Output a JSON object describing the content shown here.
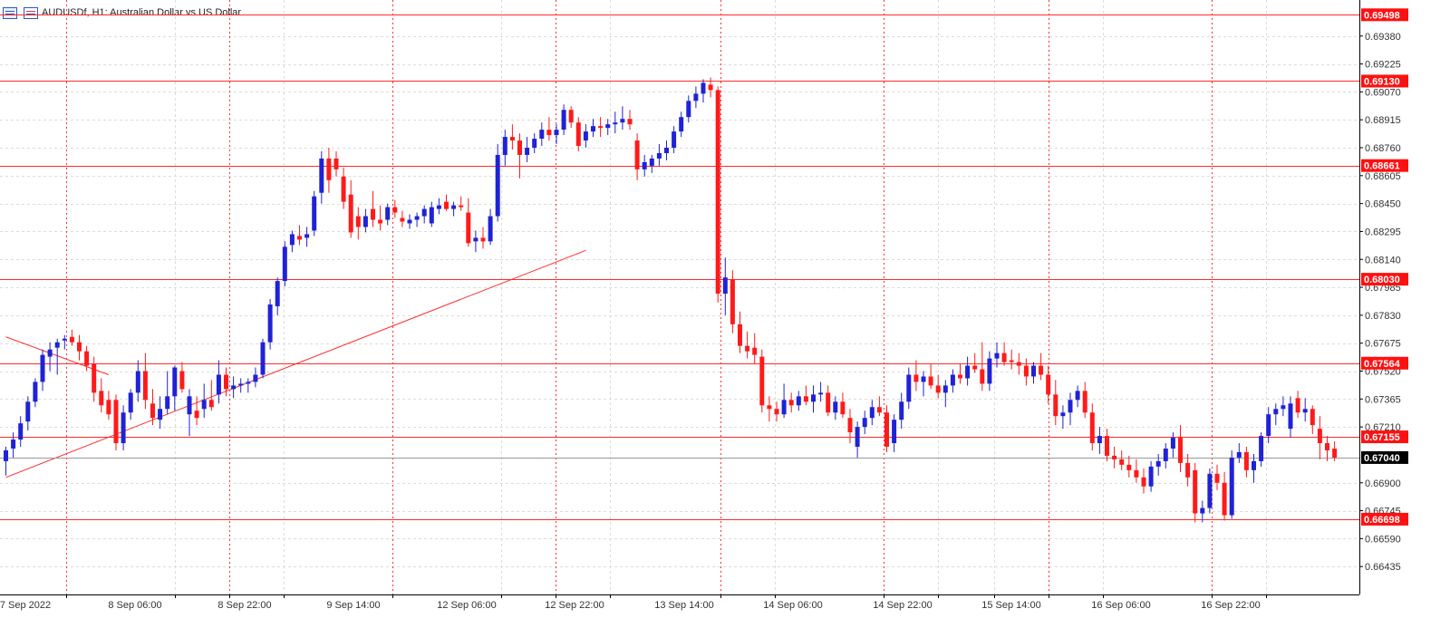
{
  "header": {
    "symbol": "AUDUSDf",
    "timeframe": "H1",
    "description": "Australian Dollar vs US Dollar",
    "title": "AUDUSDf, H1:  Australian Dollar vs US Dollar"
  },
  "colors": {
    "bull": "#1f22d6",
    "bear": "#ff1a1a",
    "level_line": "#ff2b2b",
    "label_bg": "#ff1010",
    "current_line": "#999999",
    "current_label_bg": "#000000",
    "grid": "#dcdcdc",
    "vgrid": "#ff3333",
    "axis_text": "#333333"
  },
  "chart_data": {
    "type": "candlestick",
    "symbol": "AUDUSDf",
    "timeframe": "H1",
    "title": "AUDUSDf, H1:  Australian Dollar vs US Dollar",
    "ylim": [
      0.6628,
      0.6958
    ],
    "y_ticks": [
      "0.69380",
      "0.69225",
      "0.69070",
      "0.68915",
      "0.68760",
      "0.68605",
      "0.68450",
      "0.68295",
      "0.68140",
      "0.67985",
      "0.67830",
      "0.67675",
      "0.67520",
      "0.67365",
      "0.67210",
      "0.66900",
      "0.66745",
      "0.66590",
      "0.66435"
    ],
    "x_tick_labels": [
      "7 Sep 2022",
      "8 Sep 06:00",
      "8 Sep 22:00",
      "9 Sep 14:00",
      "12 Sep 06:00",
      "12 Sep 22:00",
      "13 Sep 14:00",
      "14 Sep 06:00",
      "14 Sep 22:00",
      "15 Sep 14:00",
      "16 Sep 06:00",
      "16 Sep 22:00"
    ],
    "horizontal_levels": [
      {
        "value": 0.69498,
        "label": "0.69498"
      },
      {
        "value": 0.6913,
        "label": "0.69130"
      },
      {
        "value": 0.68661,
        "label": "0.68661"
      },
      {
        "value": 0.6803,
        "label": "0.68030"
      },
      {
        "value": 0.67564,
        "label": "0.67564"
      },
      {
        "value": 0.67155,
        "label": "0.67155"
      },
      {
        "value": 0.66698,
        "label": "0.66698"
      }
    ],
    "current_price": {
      "value": 0.6704,
      "label": "0.67040"
    },
    "trend_lines": [
      {
        "from": {
          "bar": 0,
          "price": 0.6693
        },
        "to": {
          "bar": 79,
          "price": 0.6819
        }
      },
      {
        "from": {
          "bar": 0,
          "price": 0.6771
        },
        "to": {
          "bar": 14,
          "price": 0.675
        }
      }
    ],
    "ohlc": [
      [
        0.6702,
        0.671,
        0.6694,
        0.6708
      ],
      [
        0.6709,
        0.6718,
        0.6704,
        0.6714
      ],
      [
        0.6714,
        0.6727,
        0.671,
        0.6723
      ],
      [
        0.6724,
        0.6738,
        0.6719,
        0.6735
      ],
      [
        0.6735,
        0.6748,
        0.6732,
        0.6746
      ],
      [
        0.6746,
        0.6764,
        0.6741,
        0.6761
      ],
      [
        0.676,
        0.6768,
        0.6752,
        0.6764
      ],
      [
        0.6765,
        0.677,
        0.675,
        0.6768
      ],
      [
        0.6769,
        0.6772,
        0.6764,
        0.677
      ],
      [
        0.6771,
        0.6775,
        0.6766,
        0.6768
      ],
      [
        0.6768,
        0.6772,
        0.6758,
        0.6763
      ],
      [
        0.6763,
        0.6766,
        0.6752,
        0.6755
      ],
      [
        0.6756,
        0.676,
        0.6735,
        0.674
      ],
      [
        0.6741,
        0.6748,
        0.6729,
        0.6733
      ],
      [
        0.6736,
        0.6741,
        0.6725,
        0.6728
      ],
      [
        0.6736,
        0.6739,
        0.6708,
        0.6712
      ],
      [
        0.6712,
        0.6733,
        0.6708,
        0.6729
      ],
      [
        0.6729,
        0.6742,
        0.6725,
        0.674
      ],
      [
        0.674,
        0.6758,
        0.6735,
        0.6752
      ],
      [
        0.6752,
        0.6762,
        0.6731,
        0.6736
      ],
      [
        0.6734,
        0.6742,
        0.6722,
        0.6726
      ],
      [
        0.6725,
        0.6738,
        0.672,
        0.6731
      ],
      [
        0.6731,
        0.6752,
        0.6728,
        0.6738
      ],
      [
        0.6738,
        0.6755,
        0.673,
        0.6754
      ],
      [
        0.6752,
        0.6757,
        0.674,
        0.6742
      ],
      [
        0.6728,
        0.6742,
        0.6716,
        0.6738
      ],
      [
        0.673,
        0.6738,
        0.6722,
        0.6726
      ],
      [
        0.6731,
        0.6745,
        0.6726,
        0.6736
      ],
      [
        0.6736,
        0.6747,
        0.673,
        0.6732
      ],
      [
        0.6739,
        0.6758,
        0.6734,
        0.675
      ],
      [
        0.675,
        0.6754,
        0.6738,
        0.6742
      ],
      [
        0.6742,
        0.6749,
        0.6737,
        0.6744
      ],
      [
        0.6744,
        0.6748,
        0.674,
        0.6745
      ],
      [
        0.6745,
        0.6748,
        0.674,
        0.6746
      ],
      [
        0.6746,
        0.6754,
        0.6743,
        0.675
      ],
      [
        0.675,
        0.677,
        0.6748,
        0.6768
      ],
      [
        0.6768,
        0.6792,
        0.6764,
        0.6789
      ],
      [
        0.6788,
        0.6804,
        0.6783,
        0.6802
      ],
      [
        0.6802,
        0.6824,
        0.6799,
        0.6821
      ],
      [
        0.6822,
        0.683,
        0.6818,
        0.6828
      ],
      [
        0.6827,
        0.6833,
        0.6822,
        0.6825
      ],
      [
        0.6826,
        0.6832,
        0.6821,
        0.6828
      ],
      [
        0.683,
        0.6852,
        0.6827,
        0.6849
      ],
      [
        0.6851,
        0.6874,
        0.6845,
        0.687
      ],
      [
        0.687,
        0.6876,
        0.6851,
        0.6858
      ],
      [
        0.687,
        0.6874,
        0.686,
        0.6864
      ],
      [
        0.686,
        0.6865,
        0.6842,
        0.6846
      ],
      [
        0.685,
        0.6858,
        0.6826,
        0.6829
      ],
      [
        0.6838,
        0.6843,
        0.6825,
        0.6832
      ],
      [
        0.6832,
        0.6842,
        0.6829,
        0.6838
      ],
      [
        0.6842,
        0.6852,
        0.6832,
        0.6836
      ],
      [
        0.6836,
        0.6844,
        0.683,
        0.6834
      ],
      [
        0.6836,
        0.6845,
        0.6833,
        0.6843
      ],
      [
        0.6843,
        0.6847,
        0.6837,
        0.684
      ],
      [
        0.6837,
        0.6841,
        0.6832,
        0.6835
      ],
      [
        0.6834,
        0.6839,
        0.6831,
        0.6836
      ],
      [
        0.6836,
        0.684,
        0.6832,
        0.6838
      ],
      [
        0.6838,
        0.6844,
        0.6834,
        0.6842
      ],
      [
        0.6834,
        0.6846,
        0.6832,
        0.6843
      ],
      [
        0.6842,
        0.6848,
        0.6839,
        0.6844
      ],
      [
        0.6846,
        0.685,
        0.6841,
        0.6842
      ],
      [
        0.6842,
        0.6846,
        0.6838,
        0.6844
      ],
      [
        0.6844,
        0.6849,
        0.6841,
        0.6843
      ],
      [
        0.684,
        0.6848,
        0.6821,
        0.6823
      ],
      [
        0.6824,
        0.683,
        0.6818,
        0.6826
      ],
      [
        0.6826,
        0.6832,
        0.682,
        0.6824
      ],
      [
        0.6824,
        0.6842,
        0.6822,
        0.6838
      ],
      [
        0.6838,
        0.6878,
        0.6835,
        0.6872
      ],
      [
        0.6872,
        0.6886,
        0.6866,
        0.6882
      ],
      [
        0.6882,
        0.6889,
        0.6875,
        0.688
      ],
      [
        0.688,
        0.6884,
        0.6859,
        0.6872
      ],
      [
        0.6872,
        0.6882,
        0.6868,
        0.6876
      ],
      [
        0.6876,
        0.6884,
        0.6873,
        0.6881
      ],
      [
        0.6881,
        0.689,
        0.6877,
        0.6886
      ],
      [
        0.6886,
        0.6893,
        0.688,
        0.6883
      ],
      [
        0.6883,
        0.6889,
        0.6878,
        0.6886
      ],
      [
        0.6886,
        0.69,
        0.6883,
        0.6897
      ],
      [
        0.6897,
        0.6899,
        0.6887,
        0.689
      ],
      [
        0.689,
        0.6893,
        0.6874,
        0.6877
      ],
      [
        0.688,
        0.6889,
        0.6876,
        0.6885
      ],
      [
        0.6885,
        0.6892,
        0.6882,
        0.6888
      ],
      [
        0.6888,
        0.6893,
        0.6882,
        0.6887
      ],
      [
        0.6887,
        0.6892,
        0.6883,
        0.6889
      ],
      [
        0.6889,
        0.6896,
        0.6884,
        0.689
      ],
      [
        0.689,
        0.6899,
        0.6886,
        0.6892
      ],
      [
        0.6892,
        0.6897,
        0.6886,
        0.6889
      ],
      [
        0.688,
        0.6884,
        0.6858,
        0.6864
      ],
      [
        0.6864,
        0.6872,
        0.686,
        0.6868
      ],
      [
        0.6866,
        0.6872,
        0.6862,
        0.687
      ],
      [
        0.687,
        0.6878,
        0.6866,
        0.6873
      ],
      [
        0.6873,
        0.688,
        0.6869,
        0.6876
      ],
      [
        0.6876,
        0.6888,
        0.6873,
        0.6885
      ],
      [
        0.6885,
        0.6896,
        0.6882,
        0.6893
      ],
      [
        0.6893,
        0.6905,
        0.689,
        0.6902
      ],
      [
        0.6902,
        0.691,
        0.6898,
        0.6906
      ],
      [
        0.6906,
        0.6914,
        0.6901,
        0.6912
      ],
      [
        0.6911,
        0.6915,
        0.6904,
        0.6908
      ],
      [
        0.6908,
        0.691,
        0.679,
        0.6795
      ],
      [
        0.6795,
        0.6815,
        0.6783,
        0.6804
      ],
      [
        0.6803,
        0.6808,
        0.6773,
        0.6778
      ],
      [
        0.6778,
        0.6785,
        0.6762,
        0.6766
      ],
      [
        0.6766,
        0.6774,
        0.6759,
        0.6763
      ],
      [
        0.6765,
        0.6773,
        0.6756,
        0.6761
      ],
      [
        0.676,
        0.6764,
        0.6729,
        0.6733
      ],
      [
        0.6733,
        0.6738,
        0.6724,
        0.6731
      ],
      [
        0.6731,
        0.6735,
        0.6724,
        0.6728
      ],
      [
        0.6728,
        0.6745,
        0.6726,
        0.6736
      ],
      [
        0.6736,
        0.674,
        0.6729,
        0.6733
      ],
      [
        0.6733,
        0.6741,
        0.673,
        0.6738
      ],
      [
        0.6738,
        0.6744,
        0.6733,
        0.6735
      ],
      [
        0.6735,
        0.6744,
        0.6729,
        0.6739
      ],
      [
        0.6739,
        0.6746,
        0.6735,
        0.674
      ],
      [
        0.674,
        0.6744,
        0.6727,
        0.6729
      ],
      [
        0.6729,
        0.6738,
        0.6725,
        0.6735
      ],
      [
        0.6735,
        0.674,
        0.6726,
        0.6728
      ],
      [
        0.6726,
        0.6731,
        0.6712,
        0.6718
      ],
      [
        0.671,
        0.6724,
        0.6704,
        0.6721
      ],
      [
        0.6721,
        0.673,
        0.6717,
        0.6726
      ],
      [
        0.6726,
        0.6736,
        0.6722,
        0.6732
      ],
      [
        0.6732,
        0.6738,
        0.6727,
        0.6729
      ],
      [
        0.6729,
        0.6733,
        0.6707,
        0.671
      ],
      [
        0.6712,
        0.6728,
        0.6707,
        0.6725
      ],
      [
        0.6725,
        0.674,
        0.672,
        0.6735
      ],
      [
        0.6735,
        0.6754,
        0.6731,
        0.675
      ],
      [
        0.675,
        0.6758,
        0.6741,
        0.6746
      ],
      [
        0.6746,
        0.6752,
        0.6738,
        0.6749
      ],
      [
        0.6749,
        0.6756,
        0.6742,
        0.6744
      ],
      [
        0.6744,
        0.675,
        0.6737,
        0.674
      ],
      [
        0.674,
        0.6747,
        0.6732,
        0.6744
      ],
      [
        0.6744,
        0.6753,
        0.674,
        0.675
      ],
      [
        0.675,
        0.6756,
        0.6745,
        0.6748
      ],
      [
        0.6748,
        0.676,
        0.6744,
        0.6755
      ],
      [
        0.6755,
        0.6762,
        0.6751,
        0.6753
      ],
      [
        0.6753,
        0.6768,
        0.6741,
        0.6745
      ],
      [
        0.6745,
        0.6763,
        0.6741,
        0.6759
      ],
      [
        0.6759,
        0.6768,
        0.6754,
        0.6762
      ],
      [
        0.6762,
        0.6768,
        0.6755,
        0.6757
      ],
      [
        0.6758,
        0.6764,
        0.6753,
        0.6757
      ],
      [
        0.6757,
        0.6762,
        0.675,
        0.6755
      ],
      [
        0.6755,
        0.6759,
        0.6744,
        0.6749
      ],
      [
        0.6749,
        0.6757,
        0.6745,
        0.6755
      ],
      [
        0.6755,
        0.6762,
        0.6747,
        0.675
      ],
      [
        0.675,
        0.6755,
        0.6734,
        0.6739
      ],
      [
        0.6739,
        0.6747,
        0.6722,
        0.6727
      ],
      [
        0.6727,
        0.6733,
        0.672,
        0.6729
      ],
      [
        0.6729,
        0.674,
        0.6722,
        0.6736
      ],
      [
        0.6736,
        0.6744,
        0.6732,
        0.6741
      ],
      [
        0.6741,
        0.6746,
        0.6726,
        0.6729
      ],
      [
        0.6729,
        0.6734,
        0.6708,
        0.6712
      ],
      [
        0.6712,
        0.6721,
        0.6706,
        0.6716
      ],
      [
        0.6716,
        0.672,
        0.6702,
        0.6705
      ],
      [
        0.6705,
        0.671,
        0.6698,
        0.6703
      ],
      [
        0.6703,
        0.6708,
        0.6697,
        0.67
      ],
      [
        0.67,
        0.6705,
        0.6693,
        0.6697
      ],
      [
        0.6697,
        0.6703,
        0.669,
        0.6693
      ],
      [
        0.6693,
        0.6698,
        0.6684,
        0.6688
      ],
      [
        0.6688,
        0.6702,
        0.6685,
        0.6699
      ],
      [
        0.6699,
        0.6706,
        0.6694,
        0.6702
      ],
      [
        0.6702,
        0.6712,
        0.6698,
        0.6709
      ],
      [
        0.6709,
        0.6718,
        0.6704,
        0.6715
      ],
      [
        0.6715,
        0.6722,
        0.6696,
        0.6701
      ],
      [
        0.6701,
        0.6706,
        0.6688,
        0.6693
      ],
      [
        0.6697,
        0.6701,
        0.6668,
        0.6673
      ],
      [
        0.6673,
        0.668,
        0.6668,
        0.6676
      ],
      [
        0.6676,
        0.6698,
        0.6673,
        0.6695
      ],
      [
        0.6695,
        0.67,
        0.6686,
        0.669
      ],
      [
        0.669,
        0.6696,
        0.6669,
        0.6672
      ],
      [
        0.6672,
        0.6708,
        0.667,
        0.6704
      ],
      [
        0.6704,
        0.6712,
        0.6701,
        0.6707
      ],
      [
        0.6707,
        0.671,
        0.6693,
        0.6697
      ],
      [
        0.6697,
        0.6706,
        0.669,
        0.6702
      ],
      [
        0.6702,
        0.6718,
        0.6699,
        0.6716
      ],
      [
        0.6716,
        0.6732,
        0.6712,
        0.6728
      ],
      [
        0.6728,
        0.6734,
        0.6722,
        0.6731
      ],
      [
        0.6731,
        0.6738,
        0.6727,
        0.6733
      ],
      [
        0.672,
        0.6738,
        0.6715,
        0.6734
      ],
      [
        0.6737,
        0.6741,
        0.6726,
        0.6729
      ],
      [
        0.6729,
        0.6737,
        0.6724,
        0.6731
      ],
      [
        0.6731,
        0.6733,
        0.6717,
        0.6722
      ],
      [
        0.672,
        0.6727,
        0.6703,
        0.6712
      ],
      [
        0.6712,
        0.6716,
        0.6702,
        0.6708
      ],
      [
        0.6709,
        0.6713,
        0.6702,
        0.6704
      ]
    ]
  }
}
